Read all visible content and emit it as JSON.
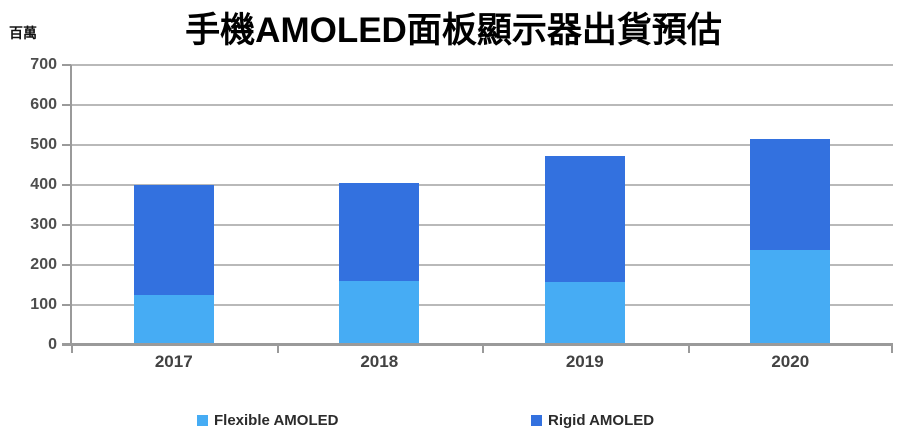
{
  "header": {
    "title": "手機AMOLED面板顯示器出貨預估",
    "unit_label": "百萬"
  },
  "chart_data": {
    "type": "bar",
    "stacked": true,
    "title": "手機AMOLED面板顯示器出貨預估",
    "ylabel_unit": "百萬",
    "categories": [
      "2017",
      "2018",
      "2019",
      "2020"
    ],
    "series": [
      {
        "name": "Flexible AMOLED",
        "color": "#46ACF4",
        "values": [
          125,
          160,
          157,
          238
        ]
      },
      {
        "name": "Rigid AMOLED",
        "color": "#3371DF",
        "values": [
          275,
          246,
          316,
          277
        ]
      }
    ],
    "totals": [
      400,
      406,
      473,
      515
    ],
    "ylim": [
      0,
      700
    ],
    "ytick_step": 100,
    "grid": true,
    "legend_position": "bottom",
    "legend_labels": [
      "Flexible AMOLED",
      "Rigid AMOLED"
    ]
  }
}
